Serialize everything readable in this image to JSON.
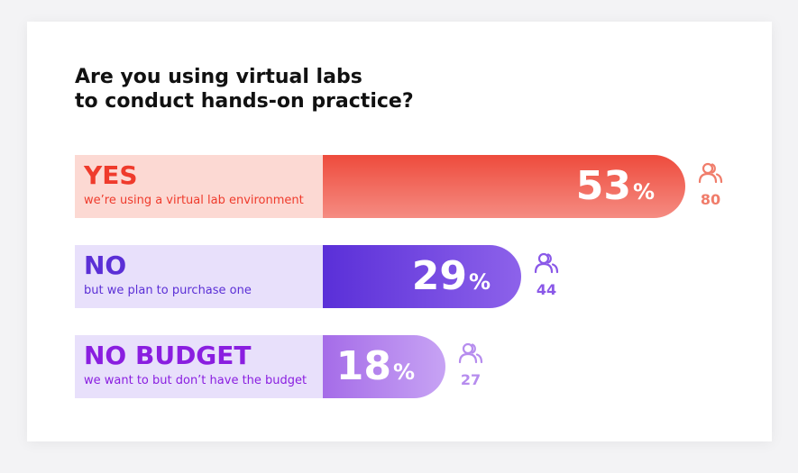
{
  "title_lines": [
    "Are you using virtual labs",
    "to conduct hands-on practice?"
  ],
  "chart_data": {
    "type": "bar",
    "orientation": "horizontal",
    "title": "Are you using virtual labs to conduct hands-on practice?",
    "categories": [
      "YES",
      "NO",
      "NO BUDGET"
    ],
    "descriptions": [
      "we’re using a virtual lab environment",
      "but we plan to purchase one",
      "we want to but don’t have the budget"
    ],
    "values": [
      53,
      29,
      18
    ],
    "unit": "%",
    "counts": [
      80,
      44,
      27
    ],
    "count_icon": "people-icon",
    "colors": {
      "yes": {
        "label_bg": "#fcd9d3",
        "label_text": "#ef3b2c",
        "bar_start": "#ee4b3c",
        "bar_end": "#f58c82",
        "count": "#f07d6b"
      },
      "no": {
        "label_bg": "#e8e0fb",
        "label_text": "#5b2fd6",
        "bar_start": "#5a2fd8",
        "bar_end": "#8d62ea",
        "count": "#8a58e8"
      },
      "no_budget": {
        "label_bg": "#e8e0fb",
        "label_text": "#8a1ee0",
        "bar_start": "#a56ce8",
        "bar_end": "#c7a3f4",
        "count": "#b68cee"
      }
    }
  }
}
